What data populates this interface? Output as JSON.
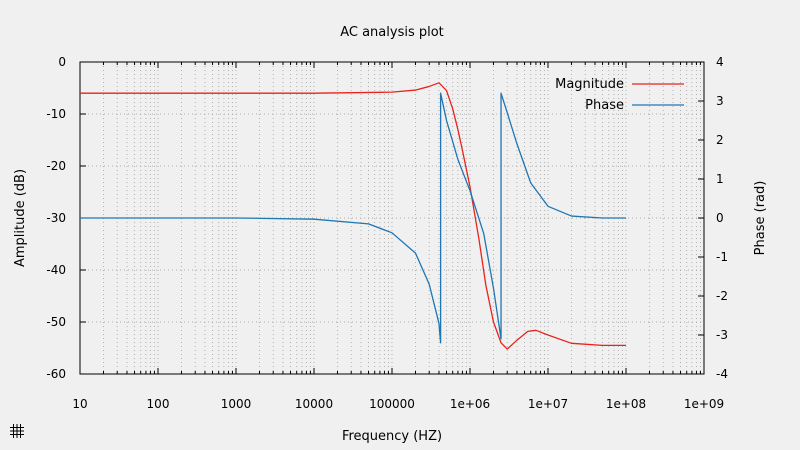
{
  "chart_data": {
    "type": "line",
    "title": "AC analysis plot",
    "xlabel": "Frequency (HZ)",
    "ylabel": "Amplitude (dB)",
    "y2label": "Phase (rad)",
    "x_scale": "log",
    "xlim": [
      10,
      1000000000
    ],
    "ylim": [
      -60,
      0
    ],
    "y2lim": [
      -4,
      4
    ],
    "grid": true,
    "legend_position": "top-right",
    "x_tick_labels": [
      "10",
      "100",
      "1000",
      "10000",
      "100000",
      "1e+06",
      "1e+07",
      "1e+08",
      "1e+09"
    ],
    "y_tick_labels": [
      "0",
      "-10",
      "-20",
      "-30",
      "-40",
      "-50",
      "-60"
    ],
    "y2_tick_labels": [
      "4",
      "3",
      "2",
      "1",
      "0",
      "-1",
      "-2",
      "-3",
      "-4"
    ],
    "series": [
      {
        "name": "Magnitude",
        "axis": "left",
        "color": "#e8221c",
        "x": [
          10,
          100,
          1000,
          10000,
          100000,
          200000,
          300000,
          400000,
          500000,
          600000,
          700000,
          800000,
          1000000,
          1300000,
          1600000,
          2000000,
          2500000,
          3000000,
          4000000,
          5500000,
          7000000,
          10000000,
          20000000,
          50000000,
          100000000
        ],
        "y": [
          -6,
          -6,
          -6,
          -6,
          -5.8,
          -5.4,
          -4.7,
          -4,
          -5.5,
          -9,
          -13,
          -17,
          -24,
          -34,
          -43,
          -50,
          -54,
          -55.2,
          -53.5,
          -51.8,
          -51.6,
          -52.5,
          -54.1,
          -54.5,
          -54.5
        ]
      },
      {
        "name": "Phase",
        "axis": "right",
        "color": "#1f76b4",
        "x": [
          10,
          1000,
          10000,
          50000,
          100000,
          200000,
          300000,
          400000,
          420000,
          420000,
          500000,
          700000,
          1000000,
          1500000,
          2000000,
          2500000,
          2500000,
          3000000,
          4000000,
          6000000,
          10000000,
          20000000,
          50000000,
          100000000
        ],
        "y": [
          0,
          0,
          -0.03,
          -0.15,
          -0.38,
          -0.9,
          -1.7,
          -2.7,
          -3.2,
          3.2,
          2.5,
          1.5,
          0.7,
          -0.4,
          -1.8,
          -3.1,
          3.2,
          2.7,
          1.9,
          0.9,
          0.3,
          0.05,
          0,
          0
        ]
      }
    ]
  },
  "toolbar": {
    "grid_toggle_icon": "grid-icon"
  }
}
